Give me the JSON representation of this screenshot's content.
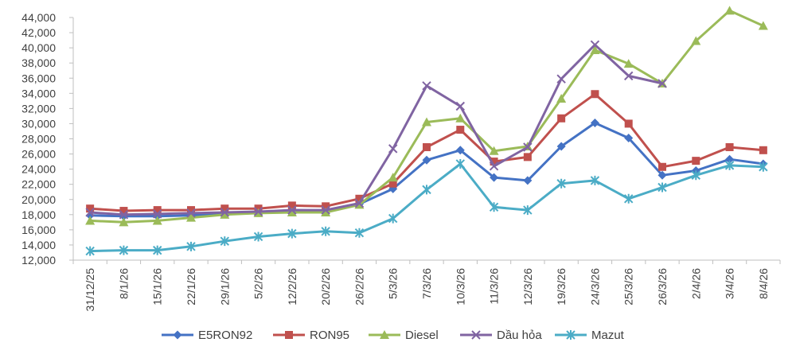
{
  "chart_data": {
    "type": "line",
    "title": "",
    "xlabel": "",
    "ylabel": "",
    "ylim": [
      12000,
      44000
    ],
    "ytick_step": 2000,
    "grid": false,
    "legend_position": "bottom",
    "categories": [
      "31/12/25",
      "8/1/26",
      "15/1/26",
      "22/1/26",
      "29/1/26",
      "5/2/26",
      "12/2/26",
      "20/2/26",
      "26/2/26",
      "5/3/26",
      "7/3/26",
      "10/3/26",
      "11/3/26",
      "12/3/26",
      "19/3/26",
      "24/3/26",
      "25/3/26",
      "26/3/26",
      "2/4/26",
      "3/4/26",
      "8/4/26"
    ],
    "yticks": [
      "12,000",
      "14,000",
      "16,000",
      "18,000",
      "20,000",
      "22,000",
      "24,000",
      "26,000",
      "28,000",
      "30,000",
      "32,000",
      "34,000",
      "36,000",
      "38,000",
      "40,000",
      "42,000",
      "44,000"
    ],
    "series": [
      {
        "name": "E5RON92",
        "color": "#4472C4",
        "marker": "diamond",
        "values": [
          17900,
          17800,
          17800,
          17900,
          18200,
          18300,
          18600,
          18500,
          19400,
          21400,
          25200,
          26500,
          22900,
          22500,
          27000,
          30100,
          28100,
          23200,
          23800,
          25300,
          24700
        ]
      },
      {
        "name": "RON95",
        "color": "#C0504D",
        "marker": "square",
        "values": [
          18800,
          18500,
          18600,
          18600,
          18800,
          18800,
          19200,
          19100,
          20100,
          22100,
          26900,
          29200,
          25000,
          25600,
          30700,
          33900,
          30000,
          24300,
          25100,
          26900,
          26500
        ]
      },
      {
        "name": "Diesel",
        "color": "#9BBB59",
        "marker": "triangle",
        "values": [
          17200,
          17000,
          17200,
          17600,
          18000,
          18200,
          18300,
          18300,
          19300,
          22900,
          30200,
          30700,
          26400,
          27000,
          33300,
          39700,
          37900,
          35300,
          40900,
          44900,
          42900
        ]
      },
      {
        "name": "Dầu hỏa",
        "color": "#8064A2",
        "marker": "x",
        "values": [
          18300,
          18000,
          18100,
          18200,
          18300,
          18400,
          18600,
          18600,
          19500,
          26700,
          35000,
          32300,
          24400,
          26900,
          35900,
          40400,
          36300,
          35300,
          null,
          null,
          null
        ]
      },
      {
        "name": "Mazut",
        "color": "#4BACC6",
        "marker": "star",
        "values": [
          13200,
          13300,
          13300,
          13800,
          14500,
          15100,
          15500,
          15800,
          15600,
          17500,
          21300,
          24700,
          19000,
          18600,
          22100,
          22500,
          20100,
          21600,
          23200,
          24500,
          24300
        ]
      }
    ]
  }
}
